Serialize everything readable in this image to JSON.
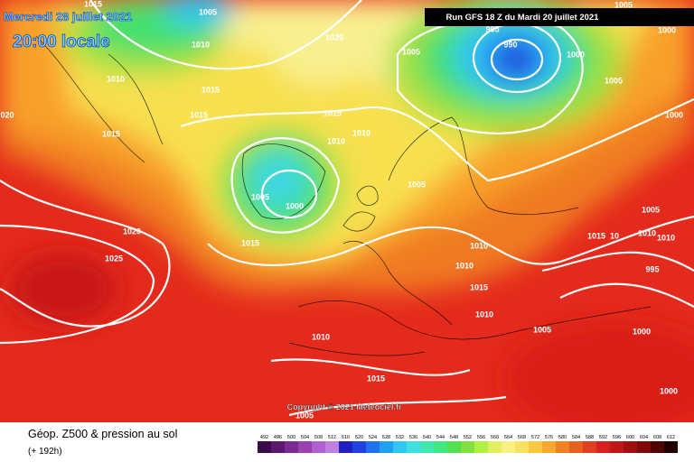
{
  "header": {
    "date": "Mercredi 28 juillet 2021",
    "time": "20:00 locale",
    "run": "Run GFS 18 Z du Mardi 20 juillet 2021"
  },
  "isobars": [
    "1015",
    "1005",
    "1010",
    "1010",
    "1015",
    "1015",
    "1015",
    "020",
    "1020",
    "1005",
    "995",
    "990",
    "1000",
    "1005",
    "1000",
    "1005",
    "1000",
    "1015",
    "1010",
    "1010",
    "1005",
    "1000",
    "1015",
    "1005",
    "1020",
    "1025",
    "1010",
    "1010",
    "1015",
    "1010",
    "1015",
    "10",
    "1005",
    "1010",
    "1010",
    "995",
    "1005",
    "1000",
    "1010",
    "1015",
    "1005",
    "1000"
  ],
  "footer": {
    "copyright": "Copyright © 2021 Meteociel.fr",
    "title": "Géop. Z500 & pression au sol",
    "lead": "(+ 192h)",
    "scale": [
      492,
      496,
      500,
      504,
      508,
      512,
      516,
      520,
      524,
      528,
      532,
      536,
      540,
      544,
      548,
      552,
      556,
      560,
      564,
      568,
      572,
      576,
      580,
      584,
      588,
      592,
      596,
      600,
      604,
      608,
      612
    ],
    "scale_colors": [
      "#3a0a4a",
      "#5a1870",
      "#7a2a90",
      "#9a40b0",
      "#b060d0",
      "#c080e0",
      "#2020c0",
      "#2040e0",
      "#2070f0",
      "#20a0f0",
      "#30c8f0",
      "#40e0e0",
      "#40e8b0",
      "#40e880",
      "#50e050",
      "#80e040",
      "#b0f040",
      "#e0f060",
      "#f8f080",
      "#f8e060",
      "#f8c840",
      "#f8a830",
      "#f08020",
      "#e86020",
      "#e04020",
      "#d82020",
      "#c01818",
      "#a01010",
      "#800808",
      "#500404",
      "#200000"
    ]
  }
}
